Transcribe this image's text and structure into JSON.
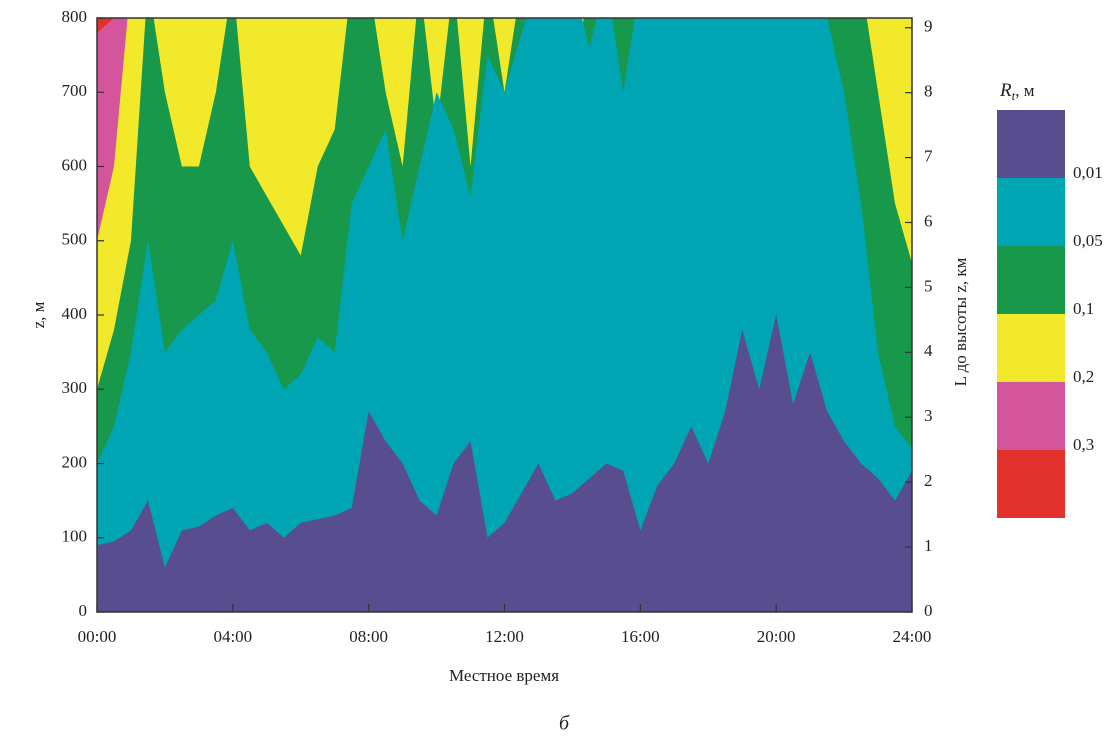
{
  "chart_data": {
    "type": "contour_area",
    "y_label": "z, м",
    "x_label": "Местное время",
    "y2_label": "L до высоты z, км",
    "caption": "б",
    "legend_title": "R",
    "legend_title_sub": "t",
    "legend_title_unit": ", м",
    "top_color": "#e3322d",
    "x": [
      0,
      0.5,
      1,
      1.5,
      2,
      2.5,
      3,
      3.5,
      4,
      4.5,
      5,
      5.5,
      6,
      6.5,
      7,
      7.5,
      8,
      8.5,
      9,
      9.5,
      10,
      10.5,
      11,
      11.5,
      12,
      12.5,
      13,
      13.5,
      14,
      14.5,
      15,
      15.5,
      16,
      16.5,
      17,
      17.5,
      18,
      18.5,
      19,
      19.5,
      20,
      20.5,
      21,
      21.5,
      22,
      22.5,
      23,
      23.5,
      24
    ],
    "xlim": [
      0,
      24
    ],
    "xticks": [
      {
        "value": 0,
        "label": "00:00"
      },
      {
        "value": 4,
        "label": "04:00"
      },
      {
        "value": 8,
        "label": "08:00"
      },
      {
        "value": 12,
        "label": "12:00"
      },
      {
        "value": 16,
        "label": "16:00"
      },
      {
        "value": 20,
        "label": "20:00"
      },
      {
        "value": 24,
        "label": "24:00"
      }
    ],
    "ylim": [
      0,
      800
    ],
    "yticks": [
      0,
      100,
      200,
      300,
      400,
      500,
      600,
      700,
      800
    ],
    "y2lim": [
      0,
      9.15
    ],
    "y2ticks": [
      0,
      1,
      2,
      3,
      4,
      5,
      6,
      7,
      8,
      9
    ],
    "series": [
      {
        "name": "0,01",
        "color": "#574d8f",
        "values": [
          90,
          95,
          110,
          150,
          60,
          110,
          115,
          130,
          140,
          110,
          120,
          100,
          120,
          125,
          130,
          140,
          270,
          230,
          200,
          150,
          130,
          200,
          230,
          100,
          120,
          160,
          200,
          150,
          160,
          180,
          200,
          190,
          110,
          170,
          200,
          250,
          200,
          270,
          380,
          300,
          400,
          280,
          350,
          270,
          230,
          200,
          180,
          150,
          190
        ]
      },
      {
        "name": "0,05",
        "color": "#00a5b4",
        "values": [
          200,
          250,
          350,
          500,
          350,
          380,
          400,
          420,
          500,
          380,
          350,
          300,
          320,
          370,
          350,
          550,
          600,
          650,
          500,
          600,
          700,
          650,
          560,
          750,
          700,
          780,
          850,
          850,
          850,
          760,
          850,
          700,
          850,
          850,
          850,
          850,
          850,
          850,
          850,
          850,
          850,
          850,
          850,
          800,
          700,
          550,
          350,
          250,
          220
        ]
      },
      {
        "name": "0,1",
        "color": "#18984a",
        "values": [
          300,
          380,
          500,
          850,
          700,
          600,
          600,
          700,
          850,
          600,
          560,
          520,
          480,
          600,
          650,
          850,
          850,
          700,
          600,
          850,
          650,
          850,
          600,
          850,
          700,
          850,
          850,
          850,
          700,
          850,
          800,
          850,
          850,
          850,
          850,
          850,
          850,
          850,
          850,
          850,
          850,
          850,
          850,
          850,
          850,
          850,
          700,
          550,
          470
        ]
      },
      {
        "name": "0,2",
        "color": "#f1e92a",
        "values": [
          500,
          600,
          850,
          850,
          850,
          850,
          850,
          850,
          850,
          850,
          850,
          850,
          850,
          850,
          850,
          850,
          850,
          850,
          850,
          850,
          850,
          850,
          850,
          850,
          850,
          850,
          850,
          850,
          850,
          850,
          850,
          850,
          850,
          850,
          850,
          850,
          850,
          850,
          850,
          850,
          850,
          850,
          850,
          850,
          850,
          850,
          850,
          850,
          850
        ]
      },
      {
        "name": "0,3",
        "color": "#d4559b",
        "values": [
          780,
          800,
          850,
          850,
          850,
          850,
          850,
          850,
          850,
          850,
          850,
          850,
          850,
          850,
          850,
          850,
          850,
          850,
          850,
          850,
          850,
          850,
          850,
          850,
          850,
          850,
          850,
          850,
          850,
          850,
          850,
          850,
          850,
          850,
          850,
          850,
          850,
          850,
          850,
          850,
          850,
          850,
          850,
          850,
          850,
          850,
          850,
          850,
          850
        ]
      }
    ]
  }
}
